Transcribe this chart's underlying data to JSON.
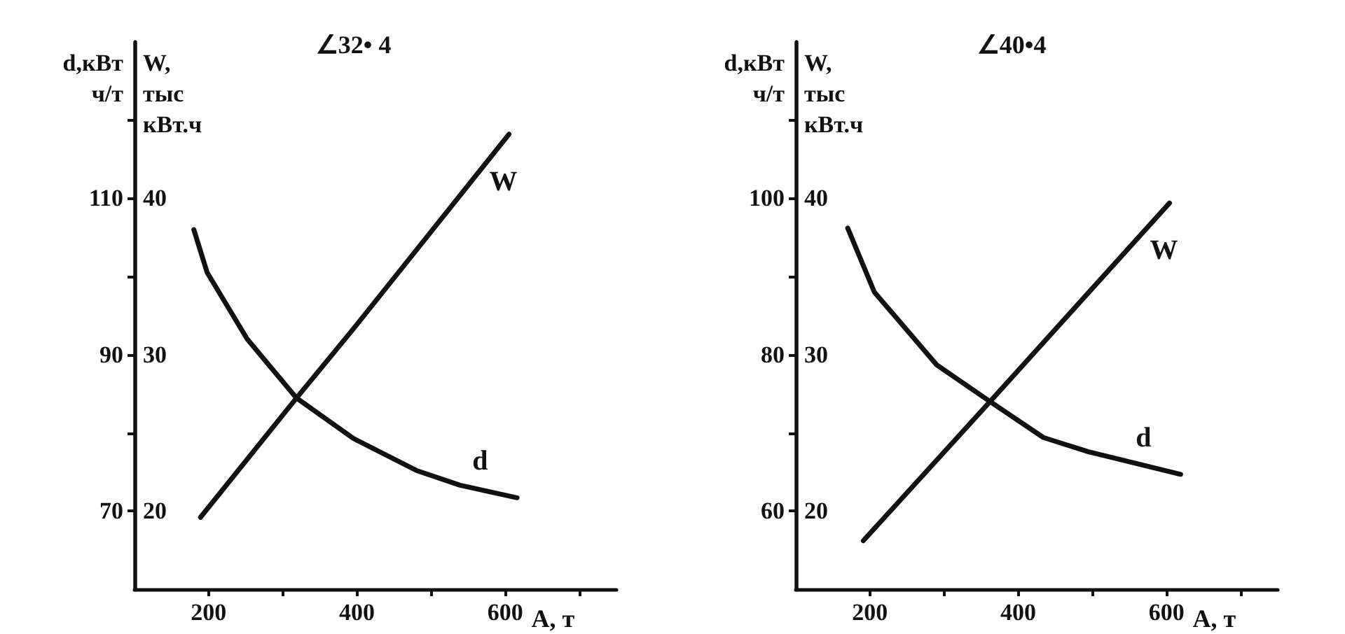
{
  "chart_data": [
    {
      "type": "line",
      "title": "∠32• 4",
      "xlabel": "A, т",
      "ylabel": "d,кВт\nч/т",
      "y2label": "W,\nтыс\nкВт.ч",
      "xlim": [
        100,
        750
      ],
      "xticks": [
        200,
        {
          "value": 300,
          "label": null
        },
        400,
        {
          "value": 500,
          "label": null
        },
        600,
        {
          "value": 700,
          "label": null
        }
      ],
      "ylim": [
        60,
        130
      ],
      "yticks": [
        70,
        {
          "value": 80,
          "label": null
        },
        90,
        {
          "value": 100,
          "label": null
        },
        110,
        {
          "value": 120,
          "label": null
        }
      ],
      "y2lim": [
        15,
        50
      ],
      "y2ticks": [
        20,
        30,
        40
      ],
      "marker": "none",
      "line_style": "solid",
      "series": [
        {
          "name": "W",
          "color": "#111111",
          "axis": "y2",
          "x": [
            189,
            318,
            396,
            605
          ],
          "values": [
            19.6,
            27.2,
            31.7,
            44.1
          ]
        },
        {
          "name": "d",
          "color": "#111111",
          "x": [
            180,
            198,
            252,
            318,
            395,
            480,
            539,
            616
          ],
          "values": [
            106,
            100.5,
            92,
            84.5,
            79.3,
            75.2,
            73.3,
            71.7
          ]
        }
      ]
    },
    {
      "type": "line",
      "title": "∠40•4",
      "xlabel": "A, т",
      "ylabel": "d,кВт\nч/т",
      "y2label": "W,\nтыс\nкВт.ч",
      "xlim": [
        100,
        750
      ],
      "xticks": [
        200,
        {
          "value": 300,
          "label": null
        },
        400,
        {
          "value": 500,
          "label": null
        },
        600,
        {
          "value": 700,
          "label": null
        }
      ],
      "ylim": [
        50,
        120
      ],
      "yticks": [
        60,
        {
          "value": 70,
          "label": null
        },
        80,
        {
          "value": 90,
          "label": null
        },
        100,
        {
          "value": 110,
          "label": null
        }
      ],
      "y2lim": [
        15,
        50
      ],
      "y2ticks": [
        20,
        30,
        40
      ],
      "marker": "none",
      "line_style": "solid",
      "series": [
        {
          "name": "W",
          "color": "#111111",
          "axis": "y2",
          "x": [
            191,
            362,
            604
          ],
          "values": [
            18.1,
            27.0,
            39.7
          ]
        },
        {
          "name": "d",
          "color": "#111111",
          "x": [
            170,
            206,
            290,
            362,
            434,
            494,
            619
          ],
          "values": [
            96.2,
            88,
            78.7,
            74,
            69.4,
            67.6,
            64.7
          ]
        }
      ]
    }
  ]
}
